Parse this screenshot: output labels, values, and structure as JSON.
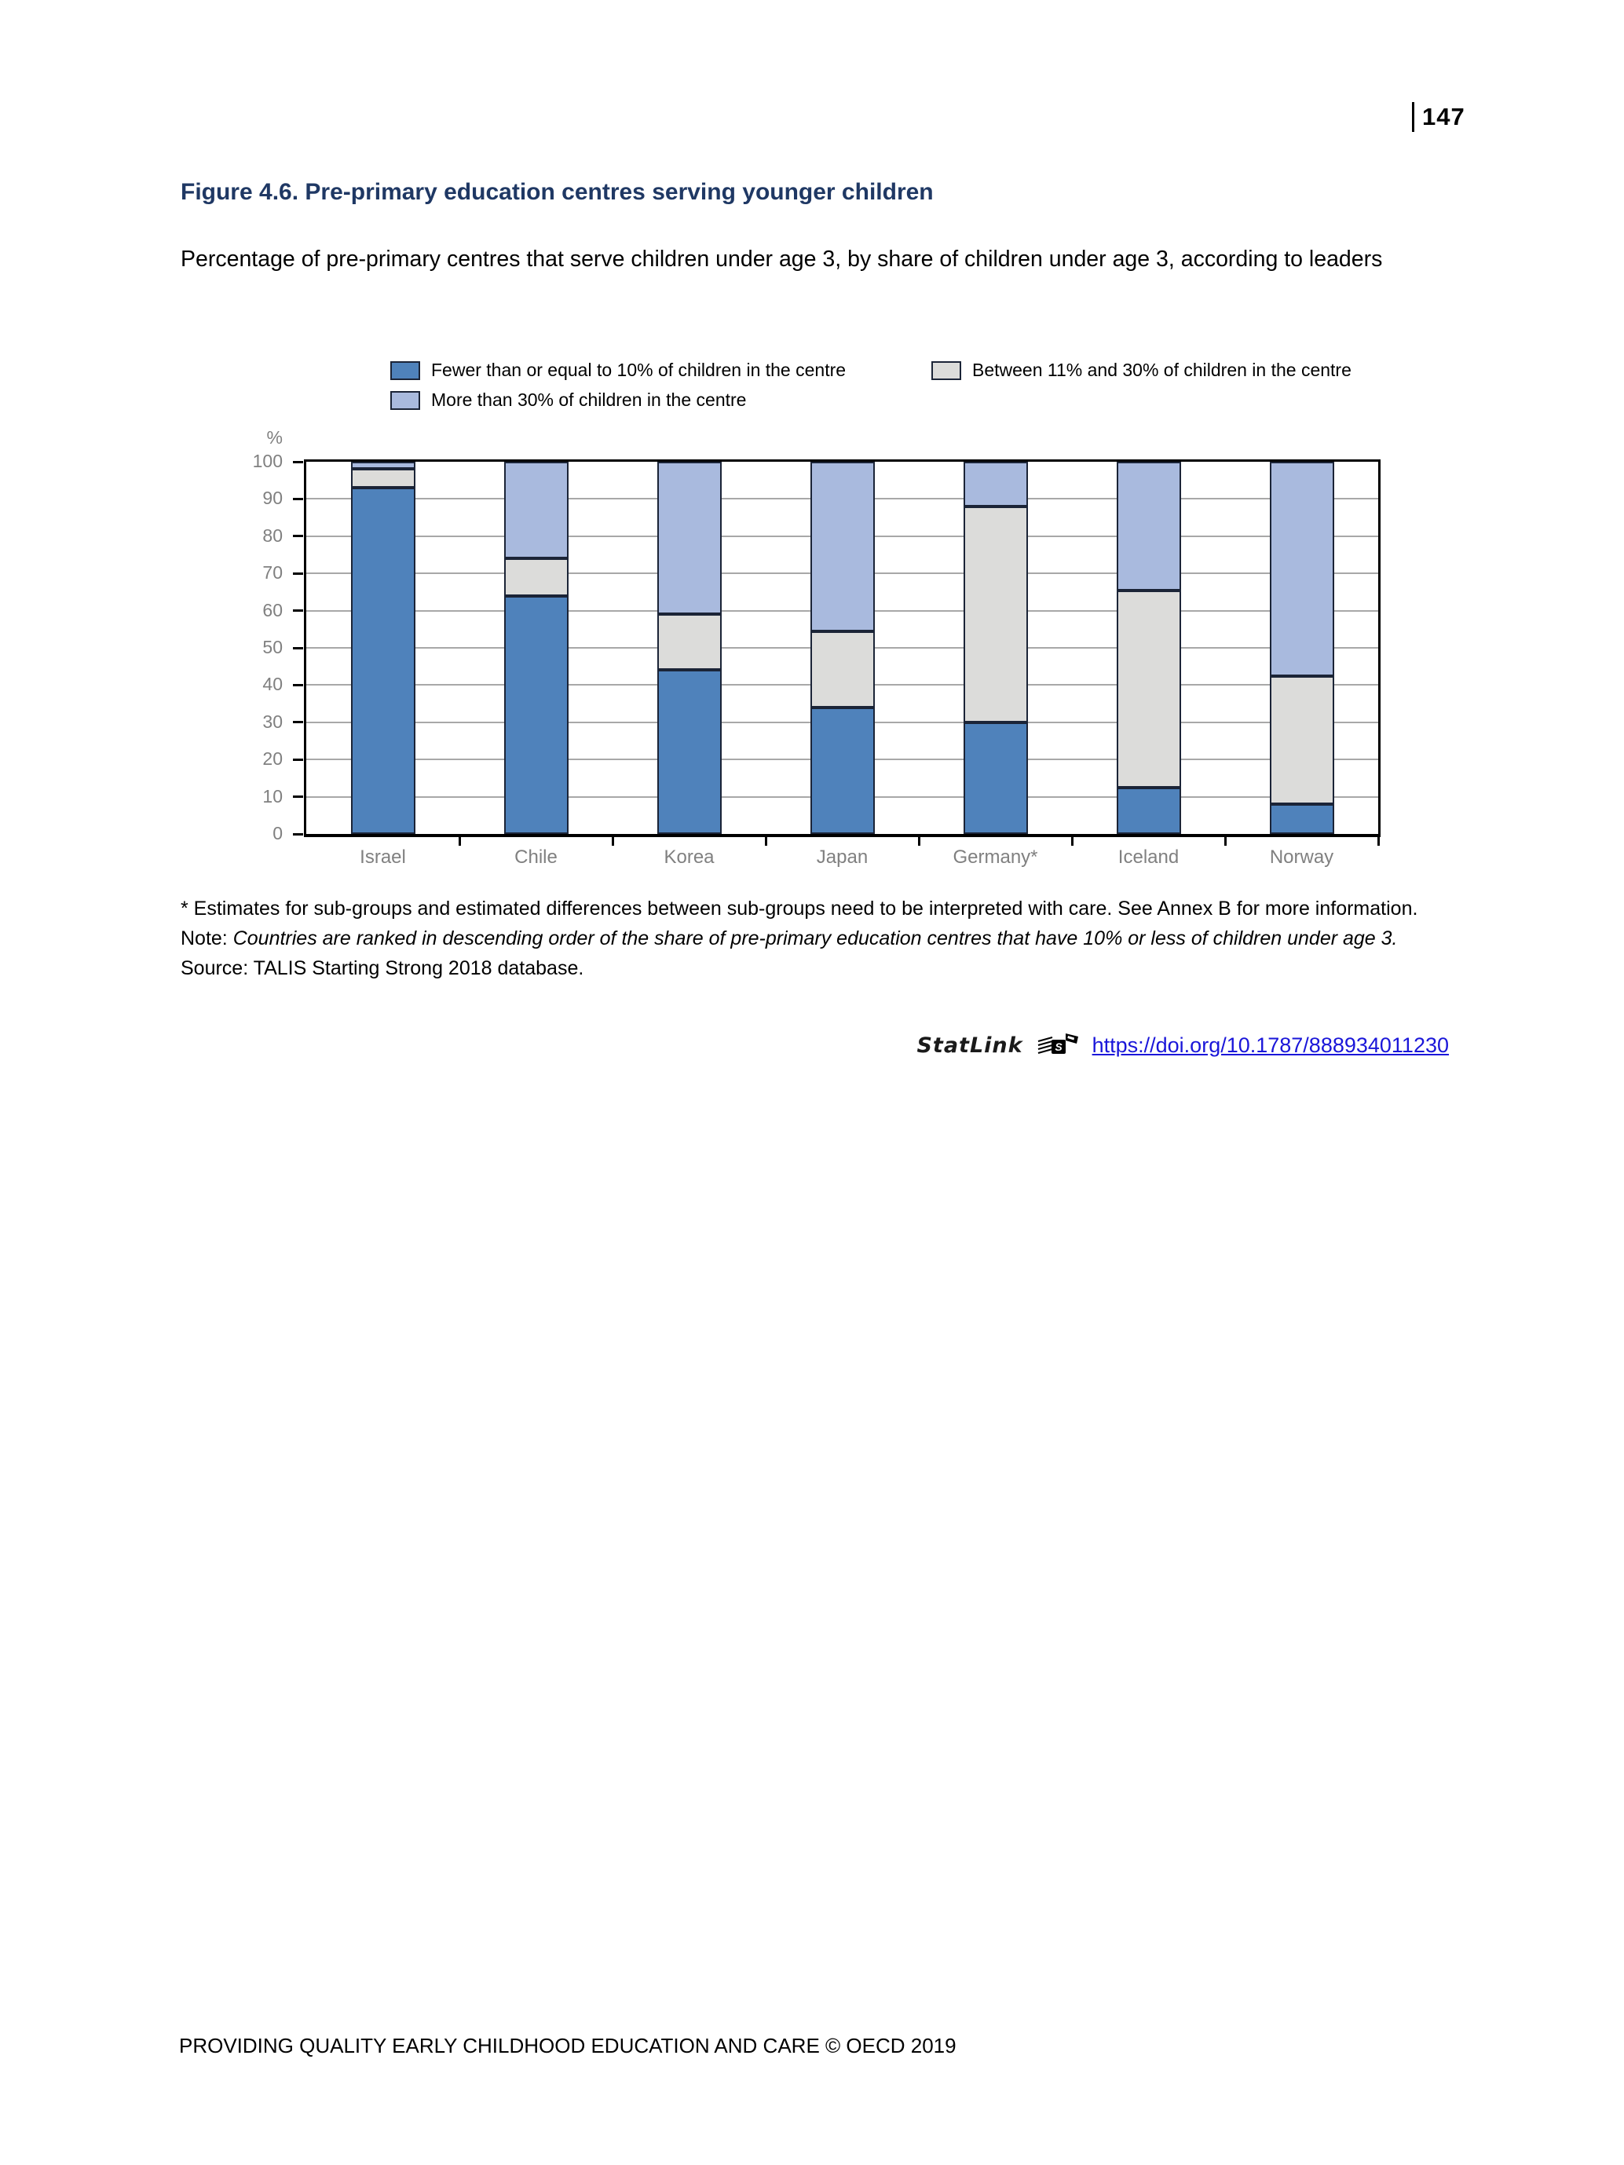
{
  "page": {
    "number": "147",
    "footer": "PROVIDING QUALITY EARLY CHILDHOOD EDUCATION AND CARE © OECD 2019"
  },
  "figure": {
    "title": "Figure 4.6. Pre-primary education centres serving younger children",
    "subtitle": "Percentage of pre-primary centres that serve children under age 3, by share of children under age 3, according to leaders"
  },
  "chart_data": {
    "type": "bar",
    "stacked": true,
    "title": "Figure 4.6. Pre-primary education centres serving younger children",
    "categories": [
      "Israel",
      "Chile",
      "Korea",
      "Japan",
      "Germany*",
      "Iceland",
      "Norway"
    ],
    "series": [
      {
        "name": "Fewer than or equal to 10% of children in the centre",
        "color": "#4f82bb",
        "values": [
          93,
          64,
          44,
          34,
          30,
          12.5,
          8
        ]
      },
      {
        "name": "Between 11% and 30% of children in the centre",
        "color": "#dcdcda",
        "values": [
          5,
          10,
          15,
          20.5,
          58,
          53,
          34.5
        ]
      },
      {
        "name": "More than 30% of children in the centre",
        "color": "#a9bade",
        "values": [
          2,
          26,
          41,
          45.5,
          12,
          34.5,
          57.5
        ]
      }
    ],
    "xlabel": "",
    "ylabel": "%",
    "ylim": [
      0,
      100
    ],
    "yticks": [
      0,
      10,
      20,
      30,
      40,
      50,
      60,
      70,
      80,
      90,
      100
    ],
    "grid": true,
    "legend_position": "top"
  },
  "colors": {
    "title_navy": "#1f3864",
    "segment_border": "#1b2437",
    "gridline": "#a8a8a8",
    "axis_text": "#808080",
    "link_blue": "#1a16d9"
  },
  "footnotes": {
    "asterisk": "* Estimates for sub-groups and estimated differences between sub-groups need to be interpreted with care. See Annex B for more information.",
    "note_label": "Note: ",
    "note_text": "Countries are ranked in descending order of the share of pre-primary education centres that have 10% or less of children under age 3.",
    "source_label": "Source: ",
    "source_text": "TALIS Starting Strong 2018 database."
  },
  "statlink": {
    "label": "StatLink",
    "url": "https://doi.org/10.1787/888934011230"
  }
}
